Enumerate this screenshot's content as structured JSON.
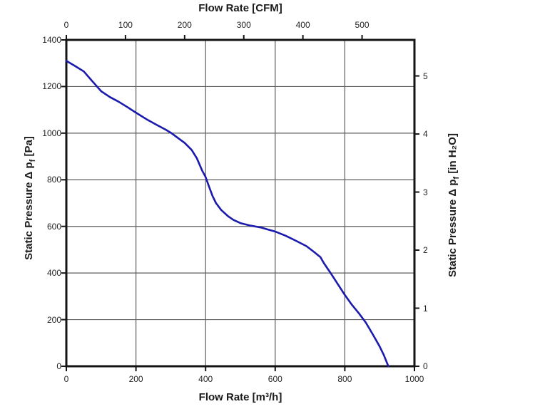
{
  "chart_data": {
    "type": "line",
    "grid": true,
    "legend": false,
    "x_top": {
      "title": "Flow Rate [CFM]",
      "ticks": [
        0,
        100,
        200,
        300,
        400,
        500
      ],
      "cfm_to_m3h": 1.69901
    },
    "x_bottom": {
      "title": "Flow Rate [m³/h]",
      "range": [
        0,
        1000
      ],
      "ticks": [
        0,
        200,
        400,
        600,
        800,
        1000
      ],
      "gridlines": [
        200,
        400,
        600,
        800
      ]
    },
    "y_left": {
      "title_pre": "Static Pressure Δ p",
      "title_sub": "f",
      "title_post": " [Pa]",
      "range": [
        0,
        1400
      ],
      "ticks": [
        1400,
        1200,
        1000,
        800,
        600,
        400,
        200,
        0
      ],
      "gridlines": [
        200,
        400,
        600,
        800,
        1000,
        1200
      ]
    },
    "y_right": {
      "title_pre": "Static Pressure Δ p",
      "title_sub": "f",
      "title_post": " [in H₂O]",
      "ticks": [
        5,
        4,
        3,
        2,
        1,
        0
      ],
      "inh2o_to_pa": 249.089
    },
    "series": [
      {
        "name": "fan-static-pressure-curve",
        "color": "#1a1aad",
        "points": [
          [
            0,
            1310
          ],
          [
            25,
            1288
          ],
          [
            50,
            1265
          ],
          [
            75,
            1222
          ],
          [
            100,
            1180
          ],
          [
            125,
            1155
          ],
          [
            150,
            1135
          ],
          [
            175,
            1112
          ],
          [
            200,
            1088
          ],
          [
            230,
            1060
          ],
          [
            260,
            1035
          ],
          [
            285,
            1015
          ],
          [
            300,
            1002
          ],
          [
            320,
            980
          ],
          [
            340,
            958
          ],
          [
            360,
            928
          ],
          [
            375,
            892
          ],
          [
            390,
            840
          ],
          [
            400,
            812
          ],
          [
            410,
            770
          ],
          [
            420,
            730
          ],
          [
            430,
            700
          ],
          [
            445,
            670
          ],
          [
            465,
            643
          ],
          [
            480,
            628
          ],
          [
            500,
            614
          ],
          [
            530,
            603
          ],
          [
            560,
            595
          ],
          [
            580,
            586
          ],
          [
            600,
            578
          ],
          [
            630,
            560
          ],
          [
            660,
            538
          ],
          [
            690,
            515
          ],
          [
            710,
            492
          ],
          [
            730,
            468
          ],
          [
            740,
            442
          ],
          [
            750,
            420
          ],
          [
            760,
            398
          ],
          [
            780,
            352
          ],
          [
            800,
            306
          ],
          [
            820,
            264
          ],
          [
            840,
            228
          ],
          [
            860,
            188
          ],
          [
            880,
            138
          ],
          [
            900,
            85
          ],
          [
            912,
            48
          ],
          [
            925,
            0
          ]
        ]
      }
    ],
    "colors": {
      "curve": "#1a1aad",
      "grid": "#5e5e5e",
      "border": "#141414",
      "text": "#1b1b1b",
      "background": "#ffffff"
    }
  }
}
